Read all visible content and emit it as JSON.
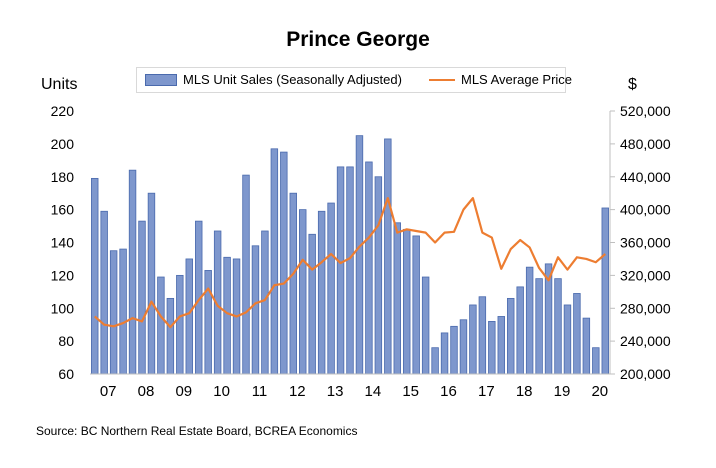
{
  "chart_data": {
    "type": "bar",
    "title": "Prince George",
    "left_axis_unit": "Units",
    "right_axis_unit": "$",
    "ylim": [
      60,
      220
    ],
    "y2lim": [
      200000,
      520000
    ],
    "y_ticks": [
      "60",
      "80",
      "100",
      "120",
      "140",
      "160",
      "180",
      "200",
      "220"
    ],
    "y2_ticks": [
      "200,000",
      "240,000",
      "280,000",
      "320,000",
      "360,000",
      "400,000",
      "440,000",
      "480,000",
      "520,000"
    ],
    "x_year_labels": [
      "07",
      "08",
      "09",
      "10",
      "11",
      "12",
      "13",
      "14",
      "15",
      "16",
      "17",
      "18",
      "19",
      "20"
    ],
    "grid": "none",
    "legend_position": "top",
    "colors": {
      "bars": "#7e97cd",
      "bar_edge": "#4a6aad",
      "line": "#ed7d31"
    },
    "series": [
      {
        "name": "MLS Unit Sales (Seasonally Adjusted)",
        "kind": "bar",
        "axis": "left",
        "values": [
          179,
          159,
          135,
          136,
          184,
          153,
          170,
          119,
          106,
          120,
          130,
          153,
          123,
          147,
          131,
          130,
          181,
          138,
          147,
          197,
          195,
          170,
          160,
          145,
          159,
          164,
          186,
          186,
          205,
          189,
          180,
          203,
          152,
          148,
          144,
          119,
          76,
          85,
          89,
          93,
          102,
          107,
          92,
          95,
          106,
          113,
          125,
          118,
          127,
          118,
          102,
          109,
          94,
          76,
          161
        ]
      },
      {
        "name": "MLS Average Price",
        "kind": "line",
        "axis": "right",
        "values": [
          270000,
          260000,
          258000,
          262000,
          268000,
          264000,
          288000,
          270000,
          257000,
          270000,
          274000,
          290000,
          304000,
          283000,
          274000,
          270000,
          275000,
          286000,
          290000,
          308000,
          310000,
          322000,
          339000,
          327000,
          336000,
          346000,
          335000,
          341000,
          355000,
          366000,
          381000,
          414000,
          372000,
          376000,
          374000,
          372000,
          360000,
          372000,
          373000,
          400000,
          414000,
          372000,
          366000,
          328000,
          352000,
          363000,
          354000,
          329000,
          314000,
          342000,
          327000,
          342000,
          340000,
          336000,
          346000
        ]
      }
    ]
  },
  "source_text": "Source:  BC Northern Real Estate Board, BCREA Economics"
}
